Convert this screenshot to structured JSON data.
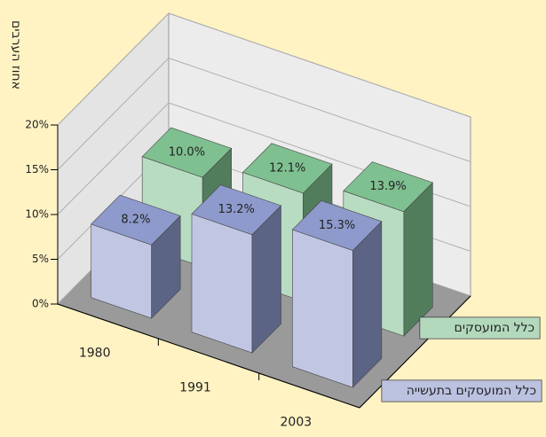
{
  "chart_data": {
    "type": "bar3d",
    "y_label": "אחוז הערבים",
    "categories": [
      "1980",
      "1991",
      "2003"
    ],
    "series": [
      {
        "name": "כלל המועסקים בתעשייה",
        "color": "#8e9acc",
        "values": [
          8.2,
          13.2,
          15.3
        ],
        "value_labels": [
          "8.2%",
          "13.2%",
          "15.3%"
        ]
      },
      {
        "name": "כלל המועסקים",
        "color": "#7fc090",
        "values": [
          10.0,
          12.1,
          13.9
        ],
        "value_labels": [
          "10.0%",
          "12.1%",
          "13.9%"
        ]
      }
    ],
    "ylim": [
      0,
      20
    ],
    "yticks": [
      {
        "value": 0,
        "label": "0%"
      },
      {
        "value": 5,
        "label": "5%"
      },
      {
        "value": 10,
        "label": "10%"
      },
      {
        "value": 15,
        "label": "15%"
      },
      {
        "value": 20,
        "label": "20%"
      }
    ],
    "grid": true
  }
}
